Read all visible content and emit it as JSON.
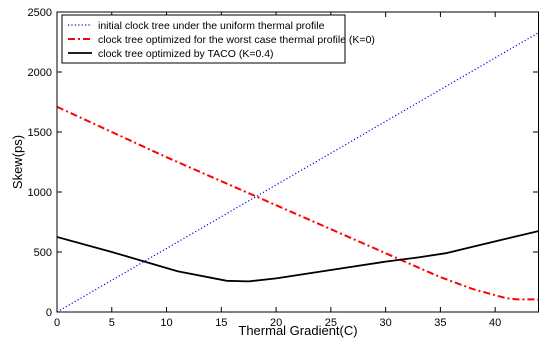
{
  "chart_data": {
    "type": "line",
    "xlabel": "Thermal Gradient(C)",
    "ylabel": "Skew(ps)",
    "xlim": [
      0,
      44
    ],
    "ylim": [
      0,
      2500
    ],
    "xticks": [
      0,
      5,
      10,
      15,
      20,
      25,
      30,
      35,
      40
    ],
    "yticks": [
      0,
      500,
      1000,
      1500,
      2000,
      2500
    ],
    "grid": false,
    "legend_position": "top-left",
    "series": [
      {
        "name": "initial clock tree under the uniform thermal profile",
        "color": "#0000ff",
        "style": "dotted",
        "x": [
          0,
          44
        ],
        "y": [
          0,
          2330
        ]
      },
      {
        "name": "clock tree optimized for the worst case thermal profile (K=0)",
        "color": "#ff0000",
        "style": "dashdot",
        "x": [
          0,
          5,
          10,
          15,
          20,
          25,
          30,
          35,
          38,
          40,
          41,
          42,
          44
        ],
        "y": [
          1710,
          1500,
          1290,
          1090,
          890,
          690,
          490,
          290,
          190,
          140,
          115,
          105,
          105
        ]
      },
      {
        "name": "clock tree optimized by TACO (K=0.4)",
        "color": "#000000",
        "style": "solid",
        "x": [
          0,
          5,
          8,
          11,
          15.5,
          17.5,
          20,
          25,
          30,
          33,
          35.5,
          38,
          41,
          44
        ],
        "y": [
          625,
          500,
          420,
          340,
          260,
          255,
          280,
          350,
          420,
          455,
          490,
          545,
          610,
          675
        ]
      }
    ]
  }
}
